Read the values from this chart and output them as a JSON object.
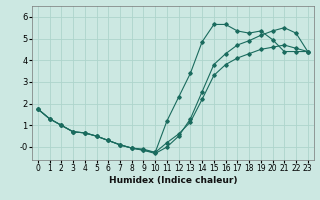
{
  "xlabel": "Humidex (Indice chaleur)",
  "xlim": [
    -0.5,
    23.5
  ],
  "ylim": [
    -0.6,
    6.5
  ],
  "xticks": [
    0,
    1,
    2,
    3,
    4,
    5,
    6,
    7,
    8,
    9,
    10,
    11,
    12,
    13,
    14,
    15,
    16,
    17,
    18,
    19,
    20,
    21,
    22,
    23
  ],
  "yticks": [
    0,
    1,
    2,
    3,
    4,
    5,
    6
  ],
  "ytick_labels": [
    "-0",
    "1",
    "2",
    "3",
    "4",
    "5",
    "6"
  ],
  "bg_color": "#cce8e2",
  "grid_color": "#aed4cc",
  "line_color": "#1a6b5e",
  "line1_x": [
    0,
    1,
    2,
    3,
    4,
    5,
    6,
    7,
    8,
    9,
    10,
    11,
    12,
    13,
    14,
    15,
    16,
    17,
    18,
    19,
    20,
    21,
    22,
    23
  ],
  "line1_y": [
    1.75,
    1.3,
    1.0,
    0.7,
    0.65,
    0.5,
    0.3,
    0.1,
    -0.05,
    -0.1,
    -0.25,
    1.2,
    2.3,
    3.4,
    4.85,
    5.65,
    5.65,
    5.35,
    5.25,
    5.35,
    4.95,
    4.4,
    4.4,
    4.4
  ],
  "line2_x": [
    0,
    1,
    2,
    3,
    4,
    5,
    6,
    7,
    8,
    9,
    10,
    11,
    12,
    13,
    14,
    15,
    16,
    17,
    18,
    19,
    20,
    21,
    22,
    23
  ],
  "line2_y": [
    1.75,
    1.3,
    1.0,
    0.7,
    0.65,
    0.5,
    0.3,
    0.1,
    -0.05,
    -0.15,
    -0.25,
    0.2,
    0.6,
    1.15,
    2.2,
    3.3,
    3.8,
    4.1,
    4.3,
    4.5,
    4.6,
    4.7,
    4.55,
    4.4
  ],
  "line3_x": [
    0,
    1,
    2,
    3,
    4,
    5,
    6,
    7,
    8,
    9,
    10,
    11,
    12,
    13,
    14,
    15,
    16,
    17,
    18,
    19,
    20,
    21,
    22,
    23
  ],
  "line3_y": [
    1.75,
    1.3,
    1.0,
    0.7,
    0.65,
    0.5,
    0.3,
    0.1,
    -0.05,
    -0.15,
    -0.3,
    0.0,
    0.5,
    1.3,
    2.55,
    3.8,
    4.3,
    4.7,
    4.9,
    5.15,
    5.35,
    5.5,
    5.25,
    4.4
  ]
}
